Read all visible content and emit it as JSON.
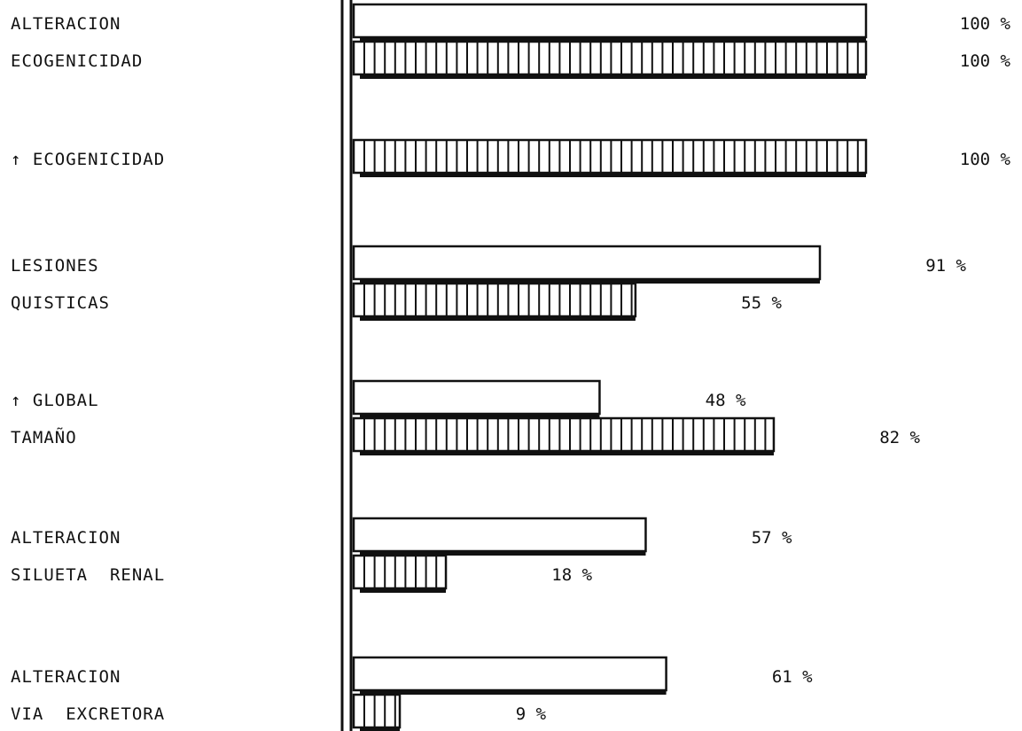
{
  "chart_data": {
    "type": "bar",
    "orientation": "horizontal",
    "categories": [
      [
        "ALTERACION",
        "ECOGENICIDAD"
      ],
      [
        "↑ ECOGENICIDAD"
      ],
      [
        "LESIONES",
        "QUISTICAS"
      ],
      [
        "↑ GLOBAL",
        "TAMAÑO"
      ],
      [
        "ALTERACION",
        "SILUETA  RENAL"
      ],
      [
        "ALTERACION",
        "VIA  EXCRETORA"
      ]
    ],
    "series": [
      {
        "style": "plain",
        "values": [
          100,
          null,
          91,
          48,
          57,
          61
        ],
        "labels": [
          "100 %",
          "",
          "91 %",
          "48 %",
          "57 %",
          "61 %"
        ]
      },
      {
        "style": "striped",
        "values": [
          100,
          100,
          55,
          82,
          18,
          9
        ],
        "labels": [
          "100 %",
          "100 %",
          "55 %",
          "82 %",
          "18 %",
          "9 %"
        ]
      }
    ],
    "xlim": [
      0,
      100
    ],
    "grid": false,
    "legend": "none",
    "title": "",
    "xlabel": "",
    "ylabel": ""
  }
}
